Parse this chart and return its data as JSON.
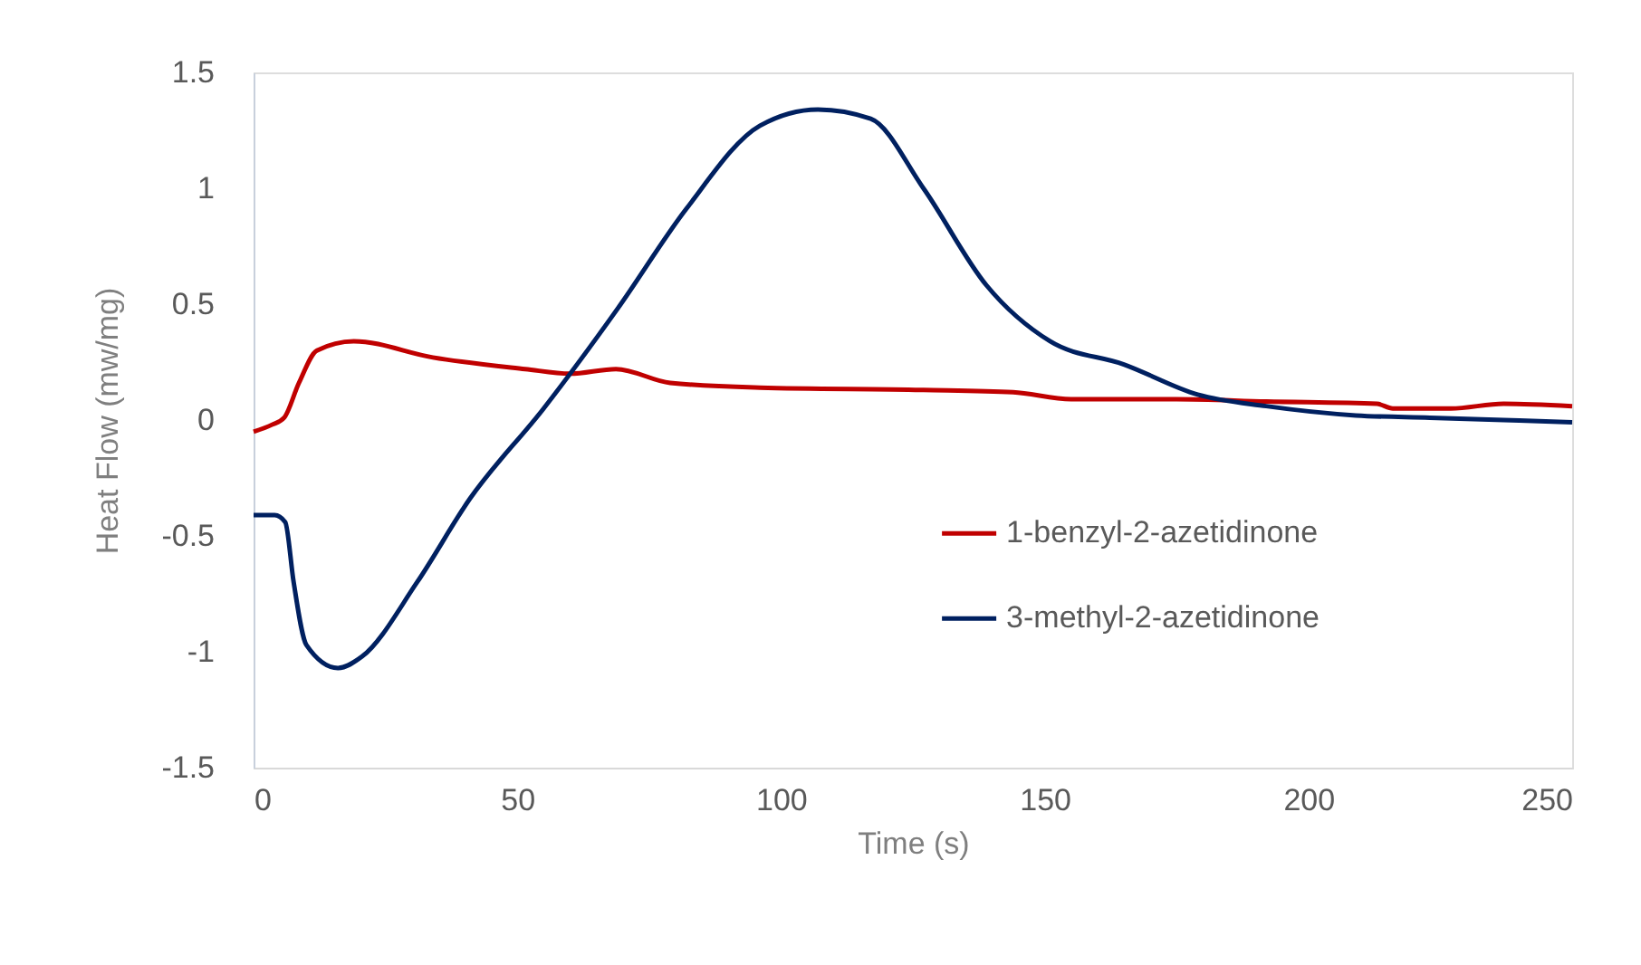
{
  "chart_data": {
    "type": "line",
    "xlabel": "Time (s)",
    "ylabel": "Heat Flow (mw/mg)",
    "xlim": [
      0,
      250
    ],
    "xticks": [
      0,
      50,
      100,
      150,
      200,
      250
    ],
    "ylim": [
      -1.5,
      1.5
    ],
    "yticks": [
      -1.5,
      -1,
      -0.5,
      0,
      0.5,
      1,
      1.5
    ],
    "grid": false,
    "legend": "right",
    "marker": "none",
    "line_style": "solid",
    "series": [
      {
        "name": "1-benzyl-2-azetidinone",
        "color": "#c00000",
        "x": [
          0,
          3.5,
          5.8,
          8.6,
          12,
          19,
          34,
          51.5,
          60,
          68.7,
          79,
          96,
          127,
          144,
          155,
          175,
          192,
          213,
          216,
          227,
          237,
          250
        ],
        "values": [
          -0.05,
          -0.02,
          0.01,
          0.16,
          0.3,
          0.34,
          0.27,
          0.22,
          0.2,
          0.22,
          0.16,
          0.14,
          0.13,
          0.12,
          0.09,
          0.09,
          0.08,
          0.07,
          0.05,
          0.05,
          0.07,
          0.06
        ]
      },
      {
        "name": "3-methyl-2-azetidinone",
        "color": "#002060",
        "x": [
          0,
          4,
          6,
          7.6,
          10,
          16,
          20.6,
          31,
          41,
          55,
          69,
          82,
          96,
          107,
          117,
          127,
          139,
          151,
          165,
          179,
          192,
          209,
          223,
          237,
          250
        ],
        "values": [
          -0.41,
          -0.41,
          -0.44,
          -0.7,
          -0.97,
          -1.07,
          -1.02,
          -0.7,
          -0.34,
          0.05,
          0.48,
          0.91,
          1.27,
          1.34,
          1.3,
          1.0,
          0.58,
          0.34,
          0.24,
          0.11,
          0.06,
          0.02,
          0.01,
          0,
          -0.01
        ]
      }
    ]
  }
}
